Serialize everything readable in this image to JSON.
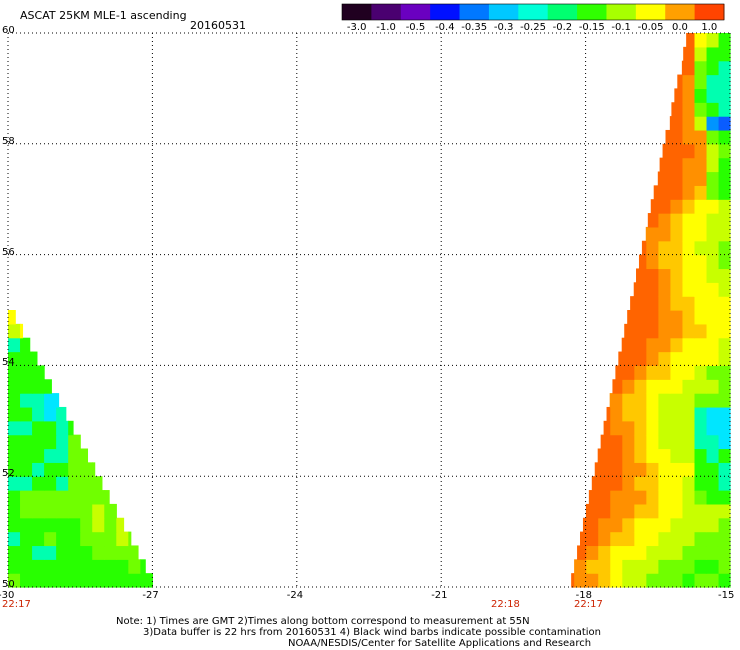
{
  "title": "ASCAT 25KM MLE-1 ascending",
  "date": "20160531",
  "colorbar": {
    "labels": [
      "-3.0",
      "-1.0",
      "-0.5",
      "-0.4",
      "-0.35",
      "-0.3",
      "-0.25",
      "-0.2",
      "-0.15",
      "-0.1",
      "-0.05",
      "0.0",
      "1.0"
    ],
    "colors": [
      "#200020",
      "#4a0070",
      "#6a00c0",
      "#0010ff",
      "#0078ff",
      "#00c8ff",
      "#00ffd8",
      "#00ff70",
      "#30ff00",
      "#a8ff00",
      "#ffff00",
      "#ffa000",
      "#ff4400"
    ]
  },
  "axes": {
    "x_ticks": [
      "-30",
      "-27",
      "-24",
      "-21",
      "-18",
      "-15"
    ],
    "y_ticks": [
      "60",
      "58",
      "56",
      "54",
      "52",
      "50"
    ],
    "lon_range": [
      -30,
      -15
    ],
    "lat_range": [
      50,
      60
    ]
  },
  "times": {
    "left": "22:17",
    "mid": "22:18",
    "right": "22:17"
  },
  "notes": {
    "line1": "Note: 1) Times are GMT 2)Times along bottom correspond to measurement at 55N",
    "line2": "3)Data buffer is 22 hrs from 20160531 4) Black wind barbs indicate possible contamination",
    "line3": "NOAA/NESDIS/Center for Satellite Applications and Research"
  }
}
